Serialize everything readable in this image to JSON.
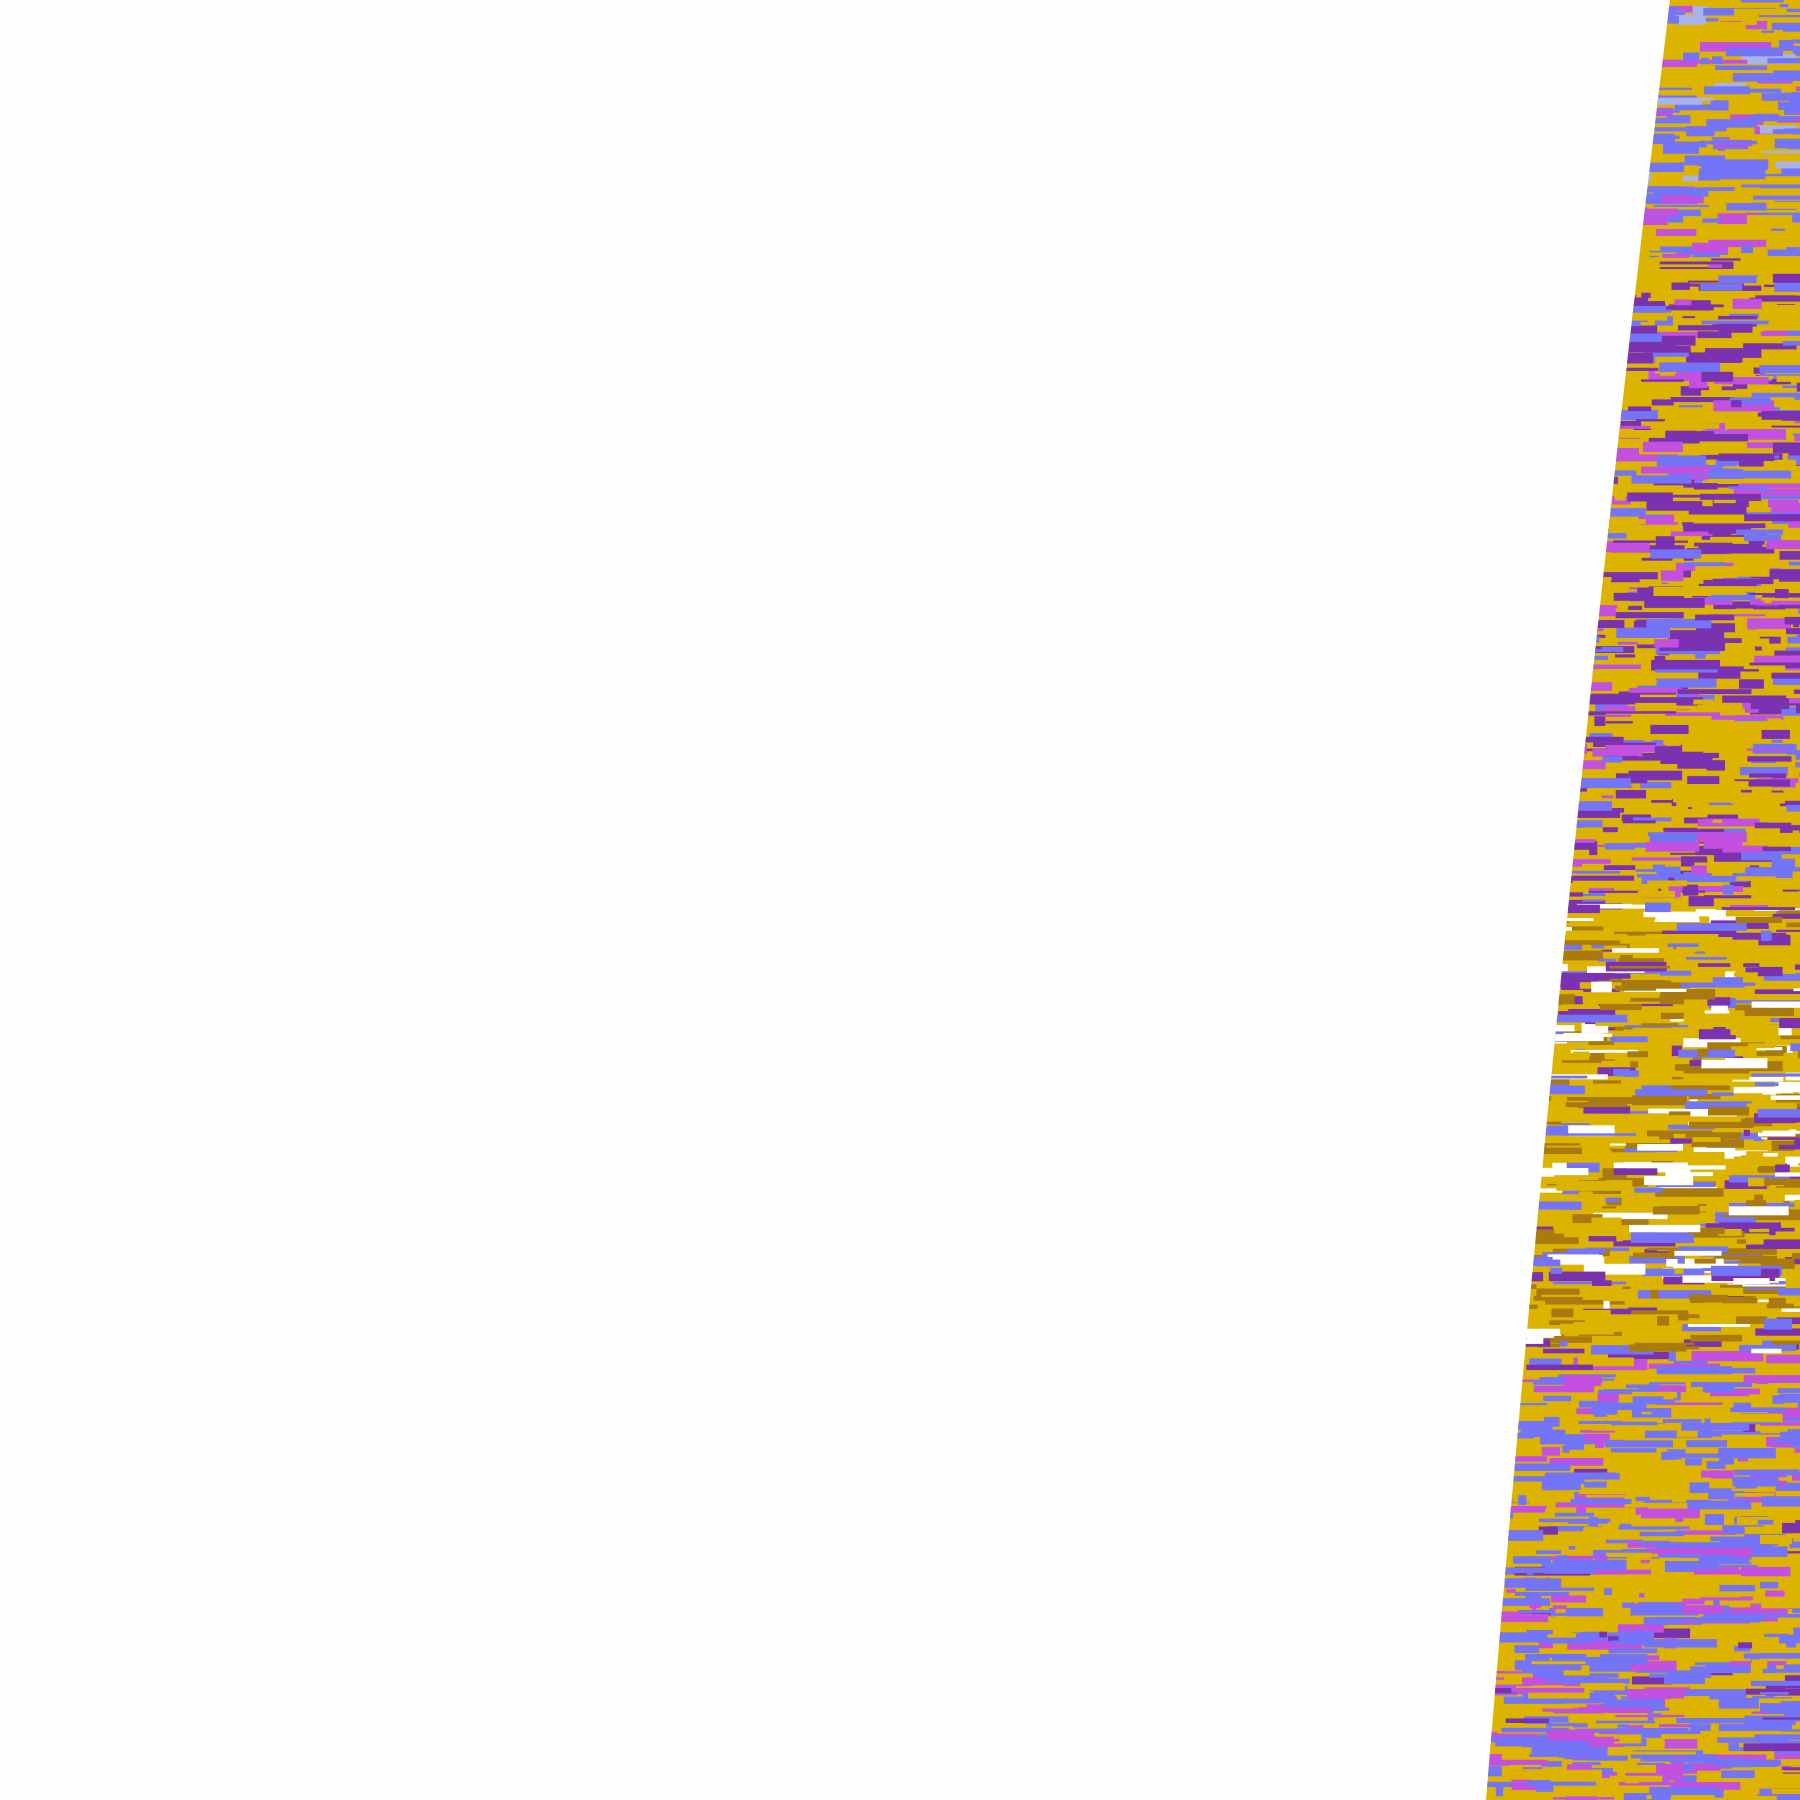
{
  "map": {
    "kind": "satellite swath classification overlay",
    "palette": {
      "background": "#fefefe",
      "gold": "#dcb400",
      "periwinkle": "#7474f6",
      "dark_purple": "#7b32b0",
      "magenta": "#c450e0",
      "brown": "#a87a10",
      "light_blue_gray": "#a8b4e8",
      "gap_white": "#ffffff"
    }
  }
}
